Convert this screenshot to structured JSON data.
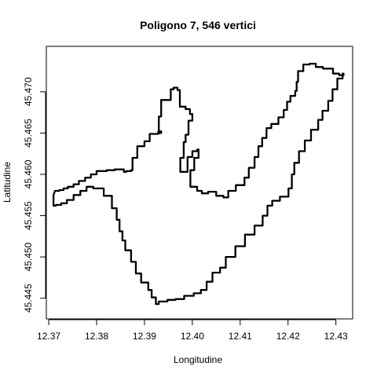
{
  "chart_data": {
    "type": "line",
    "title": "Poligono 7, 546 vertici",
    "xlabel": "Longitudine",
    "ylabel": "Latitudine",
    "xlim": [
      12.3695,
      12.4335
    ],
    "ylim": [
      45.4425,
      45.4755
    ],
    "x_ticks": [
      12.37,
      12.38,
      12.39,
      12.4,
      12.41,
      12.42,
      12.43
    ],
    "x_tick_labels": [
      "12.37",
      "12.38",
      "12.39",
      "12.40",
      "12.41",
      "12.42",
      "12.43"
    ],
    "y_ticks": [
      45.445,
      45.45,
      45.455,
      45.46,
      45.465,
      45.47
    ],
    "y_tick_labels": [
      "45.445",
      "45.450",
      "45.455",
      "45.460",
      "45.465",
      "45.470"
    ],
    "grid": false,
    "series": [
      {
        "color": "#000000",
        "closed": true,
        "points": [
          [
            12.3713,
            45.458
          ],
          [
            12.3722,
            45.4581
          ],
          [
            12.3731,
            45.4583
          ],
          [
            12.374,
            45.4585
          ],
          [
            12.3752,
            45.4588
          ],
          [
            12.3763,
            45.4592
          ],
          [
            12.3776,
            45.4596
          ],
          [
            12.3788,
            45.46
          ],
          [
            12.38,
            45.4604
          ],
          [
            12.3821,
            45.4605
          ],
          [
            12.3838,
            45.4606
          ],
          [
            12.3857,
            45.4603
          ],
          [
            12.3862,
            45.4604
          ],
          [
            12.3872,
            45.4605
          ],
          [
            12.3875,
            45.462
          ],
          [
            12.3885,
            45.4634
          ],
          [
            12.39,
            45.464
          ],
          [
            12.3911,
            45.4649
          ],
          [
            12.3922,
            45.4649
          ],
          [
            12.3929,
            45.4652
          ],
          [
            12.3935,
            45.465
          ],
          [
            12.393,
            45.467
          ],
          [
            12.3935,
            45.469
          ],
          [
            12.3955,
            45.4703
          ],
          [
            12.3961,
            45.4705
          ],
          [
            12.3969,
            45.4702
          ],
          [
            12.3974,
            45.4682
          ],
          [
            12.3986,
            45.4679
          ],
          [
            12.3995,
            45.4673
          ],
          [
            12.4,
            45.4665
          ],
          [
            12.3992,
            45.4648
          ],
          [
            12.3986,
            45.4639
          ],
          [
            12.3982,
            45.462
          ],
          [
            12.3975,
            45.4603
          ],
          [
            12.399,
            45.4621
          ],
          [
            12.4,
            45.4628
          ],
          [
            12.401,
            45.463
          ],
          [
            12.4013,
            45.462
          ],
          [
            12.4004,
            45.4605
          ],
          [
            12.3996,
            45.4585
          ],
          [
            12.401,
            45.458
          ],
          [
            12.402,
            45.4577
          ],
          [
            12.4033,
            45.4579
          ],
          [
            12.405,
            45.4574
          ],
          [
            12.4065,
            45.4572
          ],
          [
            12.4075,
            45.458
          ],
          [
            12.4091,
            45.4587
          ],
          [
            12.4109,
            45.4596
          ],
          [
            12.4118,
            45.4608
          ],
          [
            12.413,
            45.4621
          ],
          [
            12.4138,
            45.4634
          ],
          [
            12.4146,
            45.4644
          ],
          [
            12.4155,
            45.4656
          ],
          [
            12.4165,
            45.4661
          ],
          [
            12.418,
            45.4669
          ],
          [
            12.4191,
            45.4678
          ],
          [
            12.4198,
            45.4688
          ],
          [
            12.4205,
            45.4695
          ],
          [
            12.4215,
            45.4701
          ],
          [
            12.4218,
            45.4712
          ],
          [
            12.4221,
            45.4725
          ],
          [
            12.4232,
            45.4733
          ],
          [
            12.4245,
            45.4734
          ],
          [
            12.4258,
            45.473
          ],
          [
            12.4273,
            45.4728
          ],
          [
            12.4294,
            45.4722
          ],
          [
            12.4307,
            45.472
          ],
          [
            12.4316,
            45.4722
          ],
          [
            12.4314,
            45.4716
          ],
          [
            12.4303,
            45.4703
          ],
          [
            12.4293,
            45.4689
          ],
          [
            12.4284,
            45.4677
          ],
          [
            12.4272,
            45.4666
          ],
          [
            12.4263,
            45.4654
          ],
          [
            12.4248,
            45.4641
          ],
          [
            12.4235,
            45.4628
          ],
          [
            12.4223,
            45.4614
          ],
          [
            12.4213,
            45.46
          ],
          [
            12.4208,
            45.4583
          ],
          [
            12.4201,
            45.4573
          ],
          [
            12.4183,
            45.4568
          ],
          [
            12.4167,
            45.4562
          ],
          [
            12.4157,
            45.455
          ],
          [
            12.4147,
            45.4538
          ],
          [
            12.413,
            45.4527
          ],
          [
            12.411,
            45.4513
          ],
          [
            12.409,
            45.45
          ],
          [
            12.407,
            45.4487
          ],
          [
            12.4058,
            45.4481
          ],
          [
            12.4042,
            45.447
          ],
          [
            12.403,
            45.446
          ],
          [
            12.4018,
            45.4456
          ],
          [
            12.4003,
            45.4453
          ],
          [
            12.3983,
            45.4449
          ],
          [
            12.3965,
            45.4448
          ],
          [
            12.3948,
            45.4446
          ],
          [
            12.393,
            45.4443
          ],
          [
            12.3924,
            45.4451
          ],
          [
            12.3915,
            45.446
          ],
          [
            12.3908,
            45.4469
          ],
          [
            12.3893,
            45.448
          ],
          [
            12.3882,
            45.4494
          ],
          [
            12.3872,
            45.4508
          ],
          [
            12.386,
            45.452
          ],
          [
            12.3854,
            45.4531
          ],
          [
            12.3848,
            45.4545
          ],
          [
            12.3842,
            45.4559
          ],
          [
            12.3832,
            45.4574
          ],
          [
            12.3815,
            45.4583
          ],
          [
            12.3793,
            45.4585
          ],
          [
            12.3779,
            45.458
          ],
          [
            12.3766,
            45.4575
          ],
          [
            12.3752,
            45.4569
          ],
          [
            12.3738,
            45.4565
          ],
          [
            12.3726,
            45.4563
          ],
          [
            12.3715,
            45.4562
          ],
          [
            12.371,
            45.4565
          ],
          [
            12.371,
            45.4575
          ]
        ]
      }
    ]
  }
}
